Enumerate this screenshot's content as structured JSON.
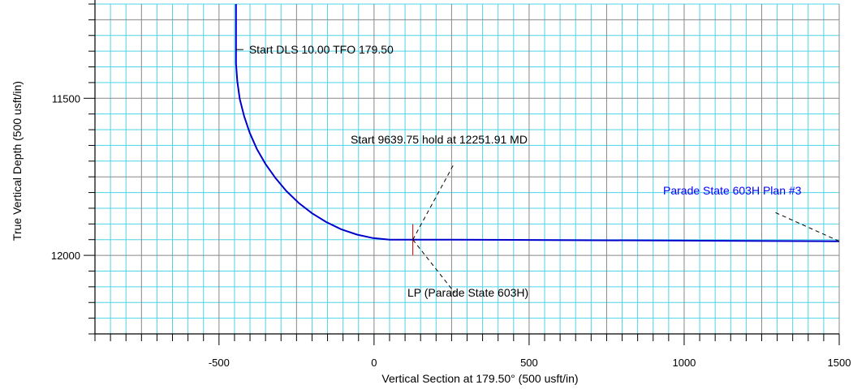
{
  "chart_data": {
    "type": "line",
    "title": "",
    "xlabel": "Vertical Section at 179.50° (500 usft/in)",
    "ylabel": "True Vertical Depth (500 usft/in)",
    "xlim": [
      -900,
      1500
    ],
    "ylim": [
      11200,
      12250
    ],
    "y_inverted": true,
    "grid": true,
    "x_major_ticks": [
      -500,
      0,
      500,
      1000,
      1500
    ],
    "y_major_ticks": [
      11500,
      12000
    ],
    "x_tick_labels": [
      "-500",
      "0",
      "500",
      "1000",
      "1500"
    ],
    "y_tick_labels": [
      "11500",
      "12000"
    ],
    "series": [
      {
        "name": "Parade State 603H Plan #3",
        "color": "#0000cc",
        "points": [
          [
            -445,
            11200
          ],
          [
            -445,
            11330
          ],
          [
            -445,
            11390
          ],
          [
            -441,
            11446
          ],
          [
            -433,
            11502
          ],
          [
            -419,
            11557
          ],
          [
            -401,
            11610
          ],
          [
            -378,
            11661
          ],
          [
            -350,
            11709
          ],
          [
            -318,
            11754
          ],
          [
            -283,
            11795
          ],
          [
            -243,
            11833
          ],
          [
            -200,
            11866
          ],
          [
            -154,
            11894
          ],
          [
            -106,
            11917
          ],
          [
            -55,
            11934
          ],
          [
            -3,
            11945
          ],
          [
            50,
            11950
          ],
          [
            125,
            11950
          ],
          [
            250,
            11950
          ],
          [
            500,
            11951
          ],
          [
            1000,
            11953
          ],
          [
            1500,
            11955
          ]
        ]
      }
    ],
    "markers": [
      {
        "name": "LP",
        "x": 125,
        "y": 11950,
        "color": "#cc0000"
      }
    ],
    "annotations": [
      {
        "text": "Start DLS 10.00 TFO 179.50",
        "x": -445,
        "y": 11345,
        "color": "#000000"
      },
      {
        "text": "Start 9639.75 hold at 12251.91 MD",
        "x": 125,
        "y": 11950,
        "color": "#000000"
      },
      {
        "text": "LP (Parade State 603H)",
        "x": 125,
        "y": 11950,
        "color": "#000000"
      },
      {
        "text": "Parade State 603H Plan #3",
        "x": 1500,
        "y": 11955,
        "color": "#0000ff"
      }
    ]
  }
}
